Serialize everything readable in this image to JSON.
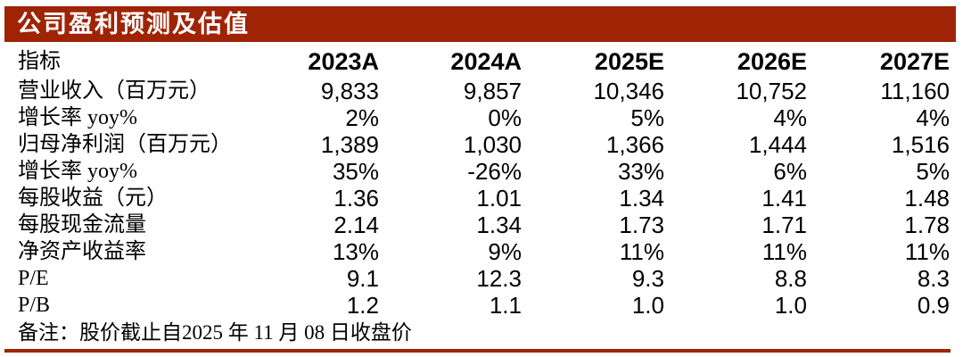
{
  "title": "公司盈利预测及估值",
  "colors": {
    "accent": "#9E2405",
    "title_text": "#FFFFFF",
    "body_text": "#000000"
  },
  "table": {
    "indicator_header": "指标",
    "year_headers": [
      "2023A",
      "2024A",
      "2025E",
      "2026E",
      "2027E"
    ],
    "rows": [
      {
        "label": "营业收入（百万元）",
        "values": [
          "9,833",
          "9,857",
          "10,346",
          "10,752",
          "11,160"
        ]
      },
      {
        "label": "增长率 yoy%",
        "values": [
          "2%",
          "0%",
          "5%",
          "4%",
          "4%"
        ]
      },
      {
        "label": "归母净利润（百万元）",
        "values": [
          "1,389",
          "1,030",
          "1,366",
          "1,444",
          "1,516"
        ]
      },
      {
        "label": "增长率 yoy%",
        "values": [
          "35%",
          "-26%",
          "33%",
          "6%",
          "5%"
        ]
      },
      {
        "label": "每股收益（元）",
        "values": [
          "1.36",
          "1.01",
          "1.34",
          "1.41",
          "1.48"
        ]
      },
      {
        "label": "每股现金流量",
        "values": [
          "2.14",
          "1.34",
          "1.73",
          "1.71",
          "1.78"
        ]
      },
      {
        "label": "净资产收益率",
        "values": [
          "13%",
          "9%",
          "11%",
          "11%",
          "11%"
        ]
      },
      {
        "label": "P/E",
        "values": [
          "9.1",
          "12.3",
          "9.3",
          "8.8",
          "8.3"
        ]
      },
      {
        "label": "P/B",
        "values": [
          "1.2",
          "1.1",
          "1.0",
          "1.0",
          "0.9"
        ]
      }
    ],
    "note": "备注：股价截止自2025 年 11 月 08 日收盘价"
  }
}
